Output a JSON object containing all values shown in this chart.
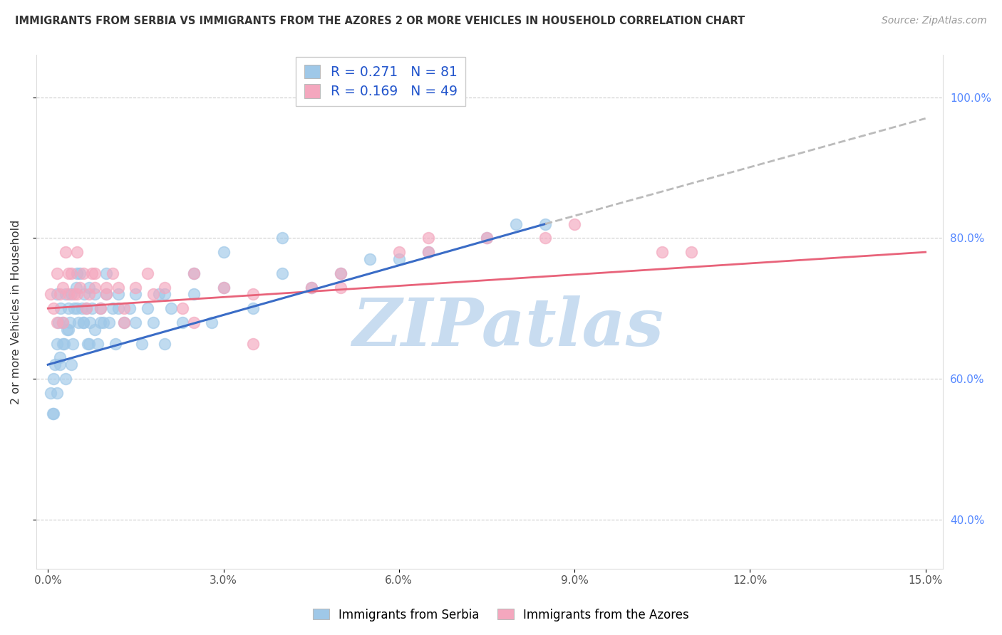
{
  "title": "IMMIGRANTS FROM SERBIA VS IMMIGRANTS FROM THE AZORES 2 OR MORE VEHICLES IN HOUSEHOLD CORRELATION CHART",
  "source": "Source: ZipAtlas.com",
  "ylabel": "2 or more Vehicles in Household",
  "xlim_min": 0.0,
  "xlim_max": 15.0,
  "ylim_min": 33.0,
  "ylim_max": 106.0,
  "x_tick_positions": [
    0.0,
    3.0,
    6.0,
    9.0,
    12.0,
    15.0
  ],
  "x_tick_labels": [
    "0.0%",
    "3.0%",
    "6.0%",
    "9.0%",
    "12.0%",
    "15.0%"
  ],
  "y_ticks": [
    40.0,
    60.0,
    80.0,
    100.0
  ],
  "y_tick_labels": [
    "40.0%",
    "60.0%",
    "80.0%",
    "100.0%"
  ],
  "serbia_R": 0.271,
  "serbia_N": 81,
  "azores_R": 0.169,
  "azores_N": 49,
  "serbia_color": "#9FC8E8",
  "azores_color": "#F4A7BE",
  "serbia_line_color": "#3A6CC6",
  "azores_line_color": "#E8637A",
  "dashed_line_color": "#BBBBBB",
  "watermark_text": "ZIPatlas",
  "watermark_color": "#C8DCF0",
  "legend_label_serbia": "Immigrants from Serbia",
  "legend_label_azores": "Immigrants from the Azores",
  "serbia_x": [
    0.05,
    0.08,
    0.1,
    0.12,
    0.15,
    0.15,
    0.18,
    0.2,
    0.22,
    0.25,
    0.28,
    0.3,
    0.32,
    0.35,
    0.38,
    0.4,
    0.42,
    0.45,
    0.48,
    0.5,
    0.52,
    0.55,
    0.58,
    0.6,
    0.62,
    0.65,
    0.68,
    0.7,
    0.72,
    0.75,
    0.8,
    0.85,
    0.9,
    0.95,
    1.0,
    1.05,
    1.1,
    1.15,
    1.2,
    1.3,
    1.4,
    1.5,
    1.6,
    1.7,
    1.8,
    1.9,
    2.0,
    2.1,
    2.3,
    2.5,
    2.8,
    3.0,
    3.5,
    4.0,
    4.5,
    5.0,
    5.5,
    6.5,
    7.5,
    8.5,
    0.1,
    0.15,
    0.2,
    0.25,
    0.3,
    0.35,
    0.4,
    0.5,
    0.6,
    0.7,
    0.8,
    0.9,
    1.0,
    1.2,
    1.5,
    2.0,
    2.5,
    3.0,
    4.0,
    6.0,
    8.0
  ],
  "serbia_y": [
    58,
    55,
    60,
    62,
    65,
    72,
    68,
    63,
    70,
    68,
    65,
    72,
    67,
    70,
    68,
    72,
    65,
    70,
    73,
    70,
    68,
    75,
    70,
    68,
    72,
    70,
    65,
    73,
    68,
    70,
    67,
    65,
    70,
    68,
    72,
    68,
    70,
    65,
    72,
    68,
    70,
    72,
    65,
    70,
    68,
    72,
    65,
    70,
    68,
    72,
    68,
    73,
    70,
    75,
    73,
    75,
    77,
    78,
    80,
    82,
    55,
    58,
    62,
    65,
    60,
    67,
    62,
    75,
    68,
    65,
    72,
    68,
    75,
    70,
    68,
    72,
    75,
    78,
    80,
    77,
    82
  ],
  "azores_x": [
    0.05,
    0.1,
    0.15,
    0.2,
    0.25,
    0.3,
    0.35,
    0.4,
    0.45,
    0.5,
    0.55,
    0.6,
    0.7,
    0.75,
    0.8,
    0.9,
    1.0,
    1.1,
    1.2,
    1.3,
    1.5,
    1.7,
    2.0,
    2.3,
    2.5,
    3.0,
    3.5,
    4.5,
    5.0,
    6.0,
    6.5,
    7.5,
    9.0,
    10.5,
    0.15,
    0.25,
    0.35,
    0.5,
    0.65,
    0.8,
    1.0,
    1.3,
    1.8,
    2.5,
    3.5,
    5.0,
    6.5,
    8.5,
    11.0
  ],
  "azores_y": [
    72,
    70,
    75,
    72,
    68,
    78,
    72,
    75,
    72,
    78,
    73,
    75,
    72,
    75,
    73,
    70,
    72,
    75,
    73,
    70,
    73,
    75,
    73,
    70,
    75,
    73,
    72,
    73,
    75,
    78,
    80,
    80,
    82,
    78,
    68,
    73,
    75,
    72,
    70,
    75,
    73,
    68,
    72,
    68,
    65,
    73,
    78,
    80,
    78
  ],
  "blue_line_x0": 0.0,
  "blue_line_y0": 62.0,
  "blue_line_x1": 8.5,
  "blue_line_y1": 82.0,
  "dash_line_x0": 8.5,
  "dash_line_y0": 82.0,
  "dash_line_x1": 15.0,
  "dash_line_y1": 97.0,
  "pink_line_x0": 0.0,
  "pink_line_y0": 70.0,
  "pink_line_x1": 15.0,
  "pink_line_y1": 78.0
}
